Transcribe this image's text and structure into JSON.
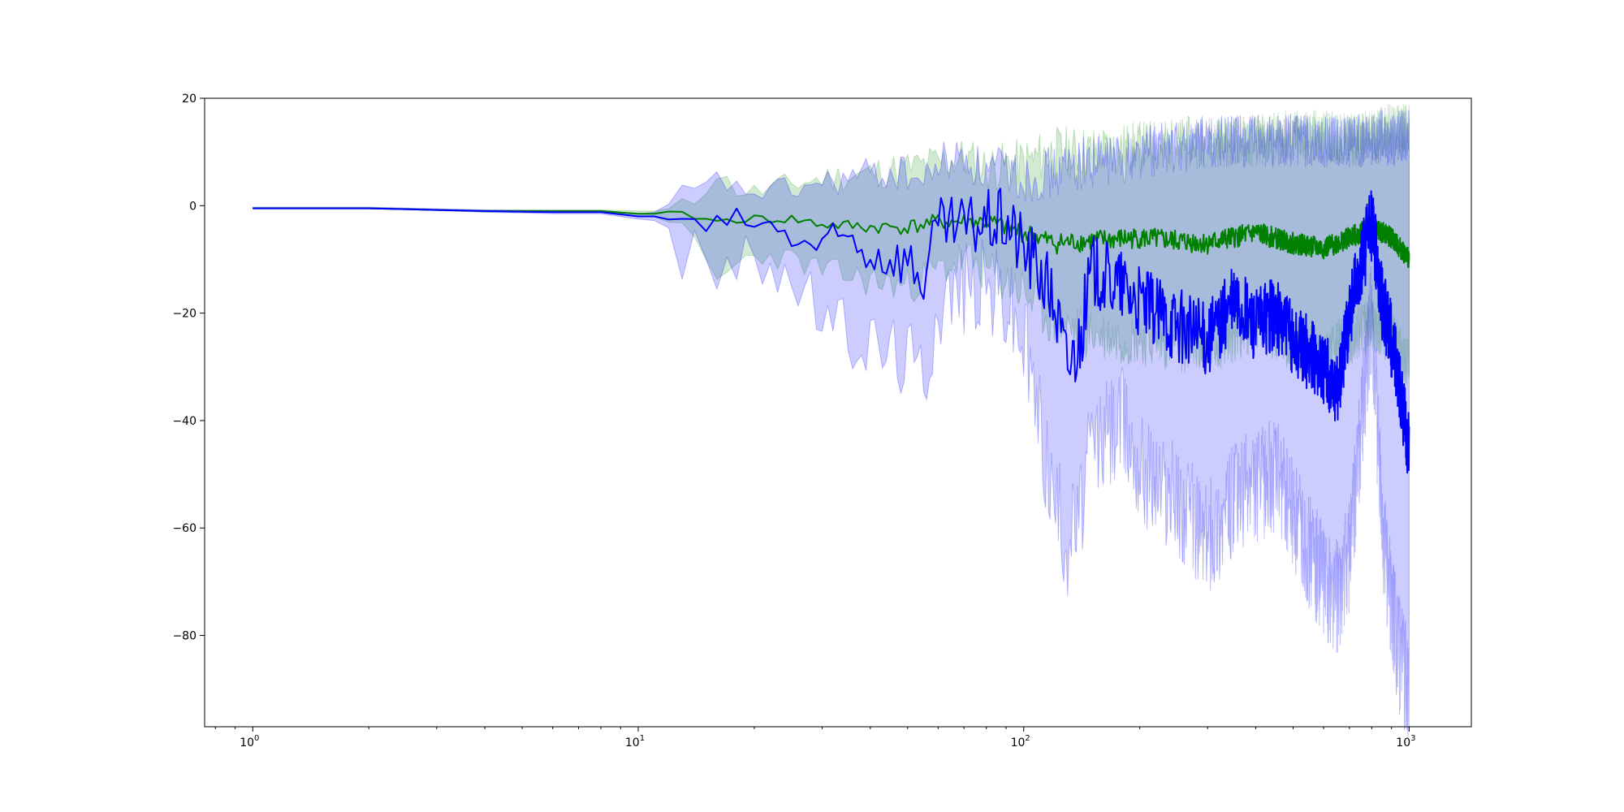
{
  "chart_data": {
    "type": "line",
    "title": "",
    "xlabel": "",
    "ylabel": "",
    "xscale": "log",
    "xlim": [
      0.75,
      1450
    ],
    "ylim": [
      -97,
      20
    ],
    "grid": false,
    "legend": "none",
    "x_ticks": [
      {
        "value": 1,
        "base": "10",
        "exp": "0"
      },
      {
        "value": 10,
        "base": "10",
        "exp": "1"
      },
      {
        "value": 100,
        "base": "10",
        "exp": "2"
      },
      {
        "value": 1000,
        "base": "10",
        "exp": "3"
      }
    ],
    "y_ticks": [
      {
        "value": 20,
        "label": "20"
      },
      {
        "value": 0,
        "label": "0"
      },
      {
        "value": -20,
        "label": "−20"
      },
      {
        "value": -40,
        "label": "−40"
      },
      {
        "value": -60,
        "label": "−60"
      },
      {
        "value": -80,
        "label": "−80"
      }
    ],
    "series": [
      {
        "color": "#008000",
        "band_color": "#2ca02c",
        "band_opacity": 0.22,
        "points": [
          [
            1,
            -0.5
          ],
          [
            2,
            -0.5
          ],
          [
            4,
            -1.0
          ],
          [
            6,
            -1.0
          ],
          [
            8,
            -1.0
          ],
          [
            10,
            -1.5
          ],
          [
            12,
            -1.5
          ],
          [
            14,
            -2.0
          ],
          [
            16,
            -3.0
          ],
          [
            18,
            -2.5
          ],
          [
            20,
            -2.5
          ],
          [
            25,
            -2.5
          ],
          [
            30,
            -3.5
          ],
          [
            40,
            -4.0
          ],
          [
            50,
            -4.0
          ],
          [
            60,
            -3.0
          ],
          [
            70,
            -3.0
          ],
          [
            80,
            -3.0
          ],
          [
            100,
            -5.0
          ],
          [
            120,
            -7.0
          ],
          [
            150,
            -6.5
          ],
          [
            200,
            -6.0
          ],
          [
            300,
            -7.0
          ],
          [
            400,
            -5.0
          ],
          [
            500,
            -7.0
          ],
          [
            600,
            -8.0
          ],
          [
            700,
            -6.0
          ],
          [
            800,
            -4.0
          ],
          [
            900,
            -6.0
          ],
          [
            1000,
            -10.0
          ]
        ],
        "lower": [
          [
            1,
            -0.5
          ],
          [
            2,
            -0.5
          ],
          [
            4,
            -1.2
          ],
          [
            6,
            -1.2
          ],
          [
            8,
            -1.2
          ],
          [
            10,
            -2.0
          ],
          [
            12,
            -2.0
          ],
          [
            14,
            -7.0
          ],
          [
            16,
            -14.0
          ],
          [
            18,
            -11.0
          ],
          [
            20,
            -9.0
          ],
          [
            25,
            -10.0
          ],
          [
            30,
            -12.0
          ],
          [
            40,
            -14.0
          ],
          [
            50,
            -15.0
          ],
          [
            60,
            -12.0
          ],
          [
            70,
            -10.0
          ],
          [
            80,
            -12.0
          ],
          [
            100,
            -16.0
          ],
          [
            120,
            -22.0
          ],
          [
            150,
            -24.0
          ],
          [
            200,
            -25.0
          ],
          [
            300,
            -27.0
          ],
          [
            400,
            -22.0
          ],
          [
            500,
            -26.0
          ],
          [
            600,
            -28.0
          ],
          [
            700,
            -25.0
          ],
          [
            800,
            -22.0
          ],
          [
            900,
            -25.0
          ],
          [
            1000,
            -30.0
          ]
        ],
        "upper": [
          [
            1,
            -0.3
          ],
          [
            2,
            -0.3
          ],
          [
            4,
            -0.8
          ],
          [
            6,
            -0.8
          ],
          [
            8,
            -0.8
          ],
          [
            10,
            -1.0
          ],
          [
            12,
            -1.0
          ],
          [
            14,
            1.0
          ],
          [
            16,
            6.0
          ],
          [
            18,
            3.0
          ],
          [
            20,
            2.5
          ],
          [
            25,
            4.0
          ],
          [
            30,
            5.0
          ],
          [
            40,
            6.0
          ],
          [
            50,
            7.0
          ],
          [
            60,
            8.0
          ],
          [
            70,
            9.0
          ],
          [
            80,
            7.0
          ],
          [
            100,
            8.0
          ],
          [
            120,
            10.0
          ],
          [
            150,
            10.0
          ],
          [
            200,
            11.0
          ],
          [
            300,
            12.0
          ],
          [
            400,
            12.0
          ],
          [
            500,
            13.0
          ],
          [
            600,
            13.0
          ],
          [
            700,
            12.0
          ],
          [
            800,
            13.0
          ],
          [
            900,
            14.0
          ],
          [
            1000,
            14.0
          ]
        ]
      },
      {
        "color": "#0000ff",
        "band_color": "#0000ff",
        "band_opacity": 0.2,
        "points": [
          [
            1,
            -0.5
          ],
          [
            2,
            -0.5
          ],
          [
            4,
            -1.0
          ],
          [
            6,
            -1.2
          ],
          [
            8,
            -1.2
          ],
          [
            10,
            -2.0
          ],
          [
            12,
            -2.0
          ],
          [
            13,
            -4.0
          ],
          [
            14,
            -2.5
          ],
          [
            15,
            -4.0
          ],
          [
            16,
            -4.0
          ],
          [
            18,
            -3.0
          ],
          [
            20,
            -3.0
          ],
          [
            25,
            -6.0
          ],
          [
            30,
            -8.0
          ],
          [
            35,
            -6.0
          ],
          [
            40,
            -9.0
          ],
          [
            50,
            -10.0
          ],
          [
            55,
            -14.0
          ],
          [
            60,
            -4.0
          ],
          [
            70,
            -4.0
          ],
          [
            80,
            -3.0
          ],
          [
            90,
            -3.0
          ],
          [
            100,
            -8.0
          ],
          [
            110,
            -12.0
          ],
          [
            120,
            -18.0
          ],
          [
            130,
            -30.0
          ],
          [
            140,
            -25.0
          ],
          [
            150,
            -12.0
          ],
          [
            180,
            -15.0
          ],
          [
            200,
            -18.0
          ],
          [
            250,
            -22.0
          ],
          [
            300,
            -25.0
          ],
          [
            350,
            -18.0
          ],
          [
            400,
            -22.0
          ],
          [
            450,
            -20.0
          ],
          [
            500,
            -25.0
          ],
          [
            600,
            -30.0
          ],
          [
            650,
            -35.0
          ],
          [
            700,
            -20.0
          ],
          [
            800,
            -3.0
          ],
          [
            850,
            -18.0
          ],
          [
            900,
            -25.0
          ],
          [
            950,
            -35.0
          ],
          [
            1000,
            -45.0
          ]
        ],
        "lower": [
          [
            1,
            -0.5
          ],
          [
            2,
            -0.5
          ],
          [
            4,
            -1.2
          ],
          [
            6,
            -1.5
          ],
          [
            8,
            -1.5
          ],
          [
            10,
            -2.5
          ],
          [
            12,
            -3.0
          ],
          [
            13,
            -11.0
          ],
          [
            14,
            -7.0
          ],
          [
            15,
            -12.0
          ],
          [
            16,
            -14.0
          ],
          [
            18,
            -11.0
          ],
          [
            20,
            -9.0
          ],
          [
            25,
            -14.0
          ],
          [
            30,
            -20.0
          ],
          [
            35,
            -24.0
          ],
          [
            40,
            -26.0
          ],
          [
            50,
            -28.0
          ],
          [
            55,
            -32.0
          ],
          [
            60,
            -18.0
          ],
          [
            70,
            -15.0
          ],
          [
            80,
            -15.0
          ],
          [
            90,
            -18.0
          ],
          [
            100,
            -25.0
          ],
          [
            110,
            -40.0
          ],
          [
            120,
            -55.0
          ],
          [
            130,
            -62.0
          ],
          [
            140,
            -58.0
          ],
          [
            150,
            -45.0
          ],
          [
            180,
            -40.0
          ],
          [
            200,
            -48.0
          ],
          [
            250,
            -55.0
          ],
          [
            300,
            -62.0
          ],
          [
            350,
            -55.0
          ],
          [
            400,
            -52.0
          ],
          [
            450,
            -50.0
          ],
          [
            500,
            -58.0
          ],
          [
            600,
            -70.0
          ],
          [
            650,
            -73.0
          ],
          [
            700,
            -65.0
          ],
          [
            800,
            -20.0
          ],
          [
            850,
            -60.0
          ],
          [
            900,
            -75.0
          ],
          [
            950,
            -85.0
          ],
          [
            1000,
            -90.0
          ]
        ],
        "upper": [
          [
            1,
            -0.3
          ],
          [
            2,
            -0.3
          ],
          [
            4,
            -0.8
          ],
          [
            6,
            -0.9
          ],
          [
            8,
            -0.9
          ],
          [
            10,
            -1.5
          ],
          [
            12,
            -1.0
          ],
          [
            13,
            3.0
          ],
          [
            14,
            2.0
          ],
          [
            15,
            4.0
          ],
          [
            16,
            5.0
          ],
          [
            18,
            3.0
          ],
          [
            20,
            2.5
          ],
          [
            25,
            3.0
          ],
          [
            30,
            4.0
          ],
          [
            35,
            5.0
          ],
          [
            40,
            6.0
          ],
          [
            50,
            6.0
          ],
          [
            55,
            4.0
          ],
          [
            60,
            8.0
          ],
          [
            70,
            9.0
          ],
          [
            80,
            6.0
          ],
          [
            90,
            7.0
          ],
          [
            100,
            5.0
          ],
          [
            110,
            6.0
          ],
          [
            120,
            6.0
          ],
          [
            130,
            7.0
          ],
          [
            140,
            8.0
          ],
          [
            150,
            8.0
          ],
          [
            180,
            9.0
          ],
          [
            200,
            10.0
          ],
          [
            250,
            11.0
          ],
          [
            300,
            12.0
          ],
          [
            350,
            12.0
          ],
          [
            400,
            12.0
          ],
          [
            450,
            12.0
          ],
          [
            500,
            12.0
          ],
          [
            600,
            12.0
          ],
          [
            650,
            12.0
          ],
          [
            700,
            12.0
          ],
          [
            800,
            12.0
          ],
          [
            850,
            13.0
          ],
          [
            900,
            12.0
          ],
          [
            950,
            13.0
          ],
          [
            1000,
            13.0
          ]
        ]
      }
    ]
  }
}
